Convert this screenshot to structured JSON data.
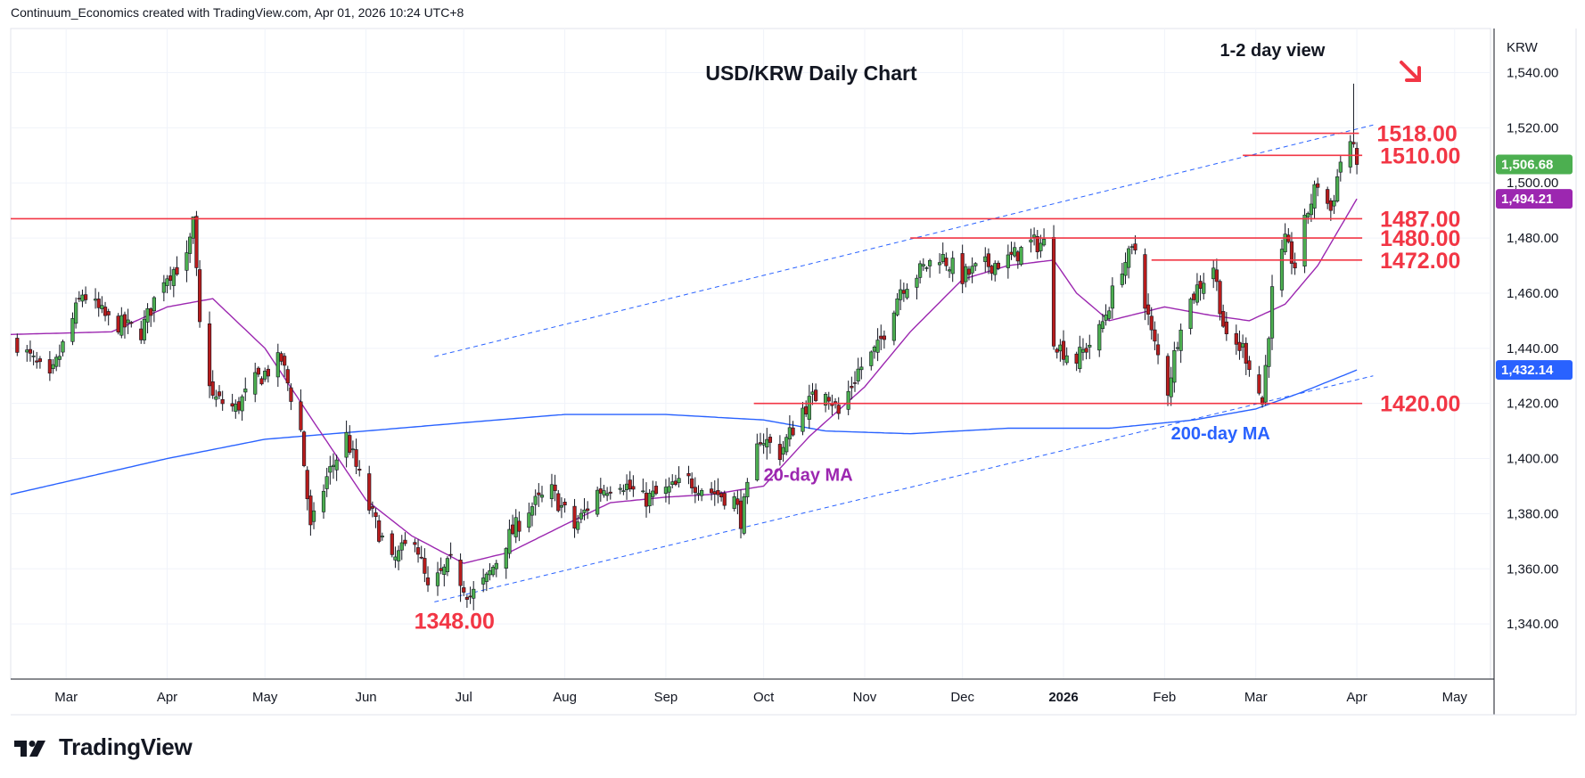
{
  "header": {
    "text": "Continuum_Economics created with TradingView.com, Apr 01, 2026 10:24 UTC+8"
  },
  "branding": {
    "logo_text": "TradingView"
  },
  "chart_data": {
    "type": "candlestick",
    "title": "USD/KRW Daily Chart",
    "currency_label": "KRW",
    "ylim": [
      1320,
      1556
    ],
    "y_ticks": [
      1340,
      1360,
      1380,
      1400,
      1420,
      1440,
      1460,
      1480,
      1500,
      1520,
      1540
    ],
    "y_tick_labels": [
      "1,340.00",
      "1,360.00",
      "1,380.00",
      "1,400.00",
      "1,420.00",
      "1,440.00",
      "1,460.00",
      "1,480.00",
      "1,500.00",
      "1,520.00",
      "1,540.00"
    ],
    "x_range": [
      "2025-02-12",
      "2026-05-12"
    ],
    "x_ticks": [
      {
        "label": "Mar",
        "date": "2025-03-01"
      },
      {
        "label": "Apr",
        "date": "2025-04-01"
      },
      {
        "label": "May",
        "date": "2025-05-01"
      },
      {
        "label": "Jun",
        "date": "2025-06-01"
      },
      {
        "label": "Jul",
        "date": "2025-07-01"
      },
      {
        "label": "Aug",
        "date": "2025-08-01"
      },
      {
        "label": "Sep",
        "date": "2025-09-01"
      },
      {
        "label": "Oct",
        "date": "2025-10-01"
      },
      {
        "label": "Nov",
        "date": "2025-11-01"
      },
      {
        "label": "Dec",
        "date": "2025-12-01"
      },
      {
        "label": "2026",
        "date": "2026-01-01"
      },
      {
        "label": "Feb",
        "date": "2026-02-01"
      },
      {
        "label": "Mar",
        "date": "2026-03-01"
      },
      {
        "label": "Apr",
        "date": "2026-04-01"
      },
      {
        "label": "May",
        "date": "2026-05-01"
      }
    ],
    "close_anchors": [
      [
        "2025-02-14",
        1442
      ],
      [
        "2025-02-24",
        1428
      ],
      [
        "2025-03-06",
        1460
      ],
      [
        "2025-03-14",
        1450
      ],
      [
        "2025-03-24",
        1446
      ],
      [
        "2025-03-31",
        1466
      ],
      [
        "2025-04-07",
        1472
      ],
      [
        "2025-04-09",
        1485
      ],
      [
        "2025-04-11",
        1448
      ],
      [
        "2025-04-15",
        1422
      ],
      [
        "2025-04-22",
        1418
      ],
      [
        "2025-04-28",
        1428
      ],
      [
        "2025-05-06",
        1436
      ],
      [
        "2025-05-12",
        1410
      ],
      [
        "2025-05-15",
        1374
      ],
      [
        "2025-05-20",
        1393
      ],
      [
        "2025-05-26",
        1408
      ],
      [
        "2025-06-02",
        1382
      ],
      [
        "2025-06-09",
        1362
      ],
      [
        "2025-06-16",
        1372
      ],
      [
        "2025-06-20",
        1352
      ],
      [
        "2025-06-27",
        1362
      ],
      [
        "2025-07-03",
        1350
      ],
      [
        "2025-07-08",
        1356
      ],
      [
        "2025-07-14",
        1370
      ],
      [
        "2025-07-21",
        1382
      ],
      [
        "2025-07-28",
        1388
      ],
      [
        "2025-08-04",
        1375
      ],
      [
        "2025-08-11",
        1388
      ],
      [
        "2025-08-18",
        1392
      ],
      [
        "2025-08-25",
        1385
      ],
      [
        "2025-09-01",
        1388
      ],
      [
        "2025-09-08",
        1392
      ],
      [
        "2025-09-15",
        1388
      ],
      [
        "2025-09-22",
        1385
      ],
      [
        "2025-09-24",
        1378
      ],
      [
        "2025-09-30",
        1408
      ],
      [
        "2025-10-06",
        1402
      ],
      [
        "2025-10-13",
        1418
      ],
      [
        "2025-10-20",
        1426
      ],
      [
        "2025-10-24",
        1416
      ],
      [
        "2025-10-30",
        1432
      ],
      [
        "2025-11-05",
        1440
      ],
      [
        "2025-11-12",
        1462
      ],
      [
        "2025-11-18",
        1468
      ],
      [
        "2025-11-24",
        1474
      ],
      [
        "2025-12-01",
        1466
      ],
      [
        "2025-12-08",
        1470
      ],
      [
        "2025-12-15",
        1472
      ],
      [
        "2025-12-22",
        1478
      ],
      [
        "2025-12-26",
        1478
      ],
      [
        "2025-12-29",
        1444
      ],
      [
        "2025-12-31",
        1440
      ],
      [
        "2026-01-05",
        1436
      ],
      [
        "2026-01-12",
        1446
      ],
      [
        "2026-01-19",
        1470
      ],
      [
        "2026-01-23",
        1476
      ],
      [
        "2026-01-28",
        1445
      ],
      [
        "2026-02-02",
        1425
      ],
      [
        "2026-02-06",
        1450
      ],
      [
        "2026-02-11",
        1462
      ],
      [
        "2026-02-16",
        1470
      ],
      [
        "2026-02-20",
        1442
      ],
      [
        "2026-02-25",
        1440
      ],
      [
        "2026-02-28",
        1432
      ],
      [
        "2026-03-03",
        1420
      ],
      [
        "2026-03-06",
        1460
      ],
      [
        "2026-03-10",
        1478
      ],
      [
        "2026-03-13",
        1470
      ],
      [
        "2026-03-17",
        1490
      ],
      [
        "2026-03-20",
        1500
      ],
      [
        "2026-03-24",
        1490
      ],
      [
        "2026-03-27",
        1508
      ],
      [
        "2026-03-30",
        1515
      ],
      [
        "2026-04-01",
        1506.68
      ]
    ],
    "candle_end": "2026-04-01",
    "annotated_highs": [
      {
        "date": "2025-04-09",
        "value": 1487
      },
      {
        "date": "2026-03-31",
        "value": 1536
      }
    ],
    "annotated_lows": [
      {
        "date": "2025-06-30",
        "value": 1348
      }
    ],
    "ma20_anchors": [
      [
        "2025-02-12",
        1445
      ],
      [
        "2025-03-15",
        1446
      ],
      [
        "2025-04-01",
        1455
      ],
      [
        "2025-04-15",
        1458
      ],
      [
        "2025-05-01",
        1440
      ],
      [
        "2025-05-15",
        1415
      ],
      [
        "2025-06-01",
        1385
      ],
      [
        "2025-06-15",
        1372
      ],
      [
        "2025-07-01",
        1362
      ],
      [
        "2025-07-15",
        1366
      ],
      [
        "2025-08-01",
        1376
      ],
      [
        "2025-08-15",
        1384
      ],
      [
        "2025-09-01",
        1386
      ],
      [
        "2025-09-15",
        1387
      ],
      [
        "2025-10-01",
        1390
      ],
      [
        "2025-10-15",
        1408
      ],
      [
        "2025-11-01",
        1426
      ],
      [
        "2025-11-15",
        1446
      ],
      [
        "2025-12-01",
        1465
      ],
      [
        "2025-12-15",
        1470
      ],
      [
        "2025-12-29",
        1472
      ],
      [
        "2026-01-05",
        1460
      ],
      [
        "2026-01-15",
        1450
      ],
      [
        "2026-02-01",
        1455
      ],
      [
        "2026-02-15",
        1452
      ],
      [
        "2026-02-27",
        1450
      ],
      [
        "2026-03-10",
        1456
      ],
      [
        "2026-03-20",
        1470
      ],
      [
        "2026-04-01",
        1494.21
      ]
    ],
    "ma200_anchors": [
      [
        "2025-02-12",
        1387
      ],
      [
        "2025-04-01",
        1400
      ],
      [
        "2025-05-01",
        1407
      ],
      [
        "2025-06-01",
        1410
      ],
      [
        "2025-07-01",
        1413
      ],
      [
        "2025-08-01",
        1416
      ],
      [
        "2025-09-01",
        1416
      ],
      [
        "2025-10-01",
        1414
      ],
      [
        "2025-10-20",
        1410
      ],
      [
        "2025-11-15",
        1409
      ],
      [
        "2025-12-15",
        1411
      ],
      [
        "2026-01-15",
        1411
      ],
      [
        "2026-02-10",
        1414
      ],
      [
        "2026-03-01",
        1418
      ],
      [
        "2026-03-15",
        1424
      ],
      [
        "2026-04-01",
        1432.14
      ]
    ],
    "channel": [
      {
        "points": [
          [
            "2025-06-22",
            1348
          ],
          [
            "2026-04-06",
            1430
          ]
        ],
        "style": "dashed"
      },
      {
        "points": [
          [
            "2025-06-22",
            1437
          ],
          [
            "2026-04-06",
            1521
          ]
        ],
        "style": "dashed"
      }
    ],
    "levels": [
      {
        "value": 1518,
        "label": "1518.00",
        "from": "2026-02-28",
        "to": "2026-03-31"
      },
      {
        "value": 1510,
        "label": "1510.00",
        "from": "2026-02-25",
        "to": "2026-04-01"
      },
      {
        "value": 1487,
        "label": "1487.00",
        "from": "2025-02-12",
        "to": "2026-04-01"
      },
      {
        "value": 1480,
        "label": "1480.00",
        "from": "2025-11-15",
        "to": "2026-04-01"
      },
      {
        "value": 1472,
        "label": "1472.00",
        "from": "2026-01-28",
        "to": "2026-04-01"
      },
      {
        "value": 1420,
        "label": "1420.00",
        "from": "2025-09-28",
        "to": "2026-04-01"
      }
    ],
    "annotations": [
      {
        "text": "1348.00",
        "date": "2025-06-30",
        "value": 1348,
        "color": "#f23645"
      },
      {
        "text": "20-day MA",
        "date": "2025-10-01",
        "value": 1390,
        "color": "#9c27b0"
      },
      {
        "text": "200-day MA",
        "date": "2026-02-03",
        "value": 1405,
        "color": "#2962ff"
      },
      {
        "text": "1-2 day view",
        "date": "2026-02-18",
        "value": 1544,
        "color": "#131722"
      }
    ],
    "last_price_badges": [
      {
        "text": "1,506.68",
        "value": 1506.68,
        "color": "#4caf50"
      },
      {
        "text": "1,494.21",
        "value": 1494.21,
        "color": "#9c27b0"
      },
      {
        "text": "1,432.14",
        "value": 1432.14,
        "color": "#2962ff"
      }
    ],
    "colors": {
      "up": "#26a69a",
      "down": "#ef5350",
      "up_fill": "#4caf50",
      "down_fill": "#b71c1c",
      "level": "#f23645",
      "ma20": "#9c27b0",
      "ma200": "#2962ff",
      "grid": "#f0f3fa"
    },
    "grid": true,
    "view_arrow": "down-right"
  }
}
